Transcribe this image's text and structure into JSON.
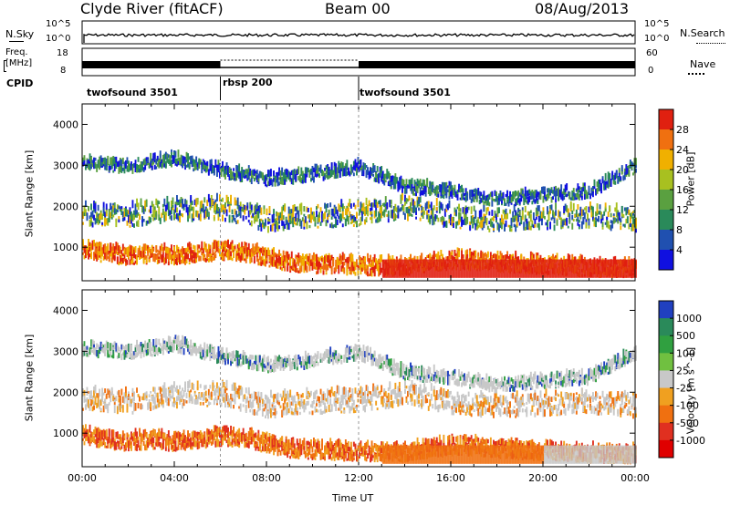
{
  "header": {
    "station": "Clyde River (fitACF)",
    "beam": "Beam 00",
    "date": "08/Aug/2013"
  },
  "status_panels": {
    "nsky_label": "N.Sky",
    "nsearch_label": "N.Search",
    "noise_ticks": [
      "10^5",
      "10^0"
    ],
    "freq_label_1": "Freq.",
    "freq_label_2": "[MHz]",
    "freq_ticks": [
      "18",
      "8"
    ],
    "nave_label": "Nave",
    "nave_ticks": [
      "60",
      "0"
    ],
    "cpid_label": "CPID",
    "cpid_segments": [
      {
        "name": "twofsound 3501",
        "start_h": 0,
        "end_h": 6
      },
      {
        "name": "rbsp 200",
        "start_h": 6,
        "end_h": 12
      },
      {
        "name": "twofsound 3501",
        "start_h": 12,
        "end_h": 24
      }
    ]
  },
  "chart_data": [
    {
      "type": "heatmap",
      "ylabel": "Slant Range [km]",
      "xlabel": "",
      "xlim": [
        0,
        24
      ],
      "ylim": [
        180,
        4500
      ],
      "yticks": [
        1000,
        2000,
        3000,
        4000
      ],
      "colorbar": {
        "label": "Power [dB]",
        "ticks": [
          4,
          8,
          12,
          16,
          20,
          24,
          28
        ],
        "colors": [
          "#1010e0",
          "#2050b0",
          "#2a8a5a",
          "#5aa040",
          "#a8c020",
          "#f0b000",
          "#f07010",
          "#e02010"
        ]
      },
      "bands": [
        {
          "label": "near",
          "t": [
            0,
            1,
            2,
            3,
            4,
            5,
            6,
            7,
            8,
            9,
            10,
            11,
            12,
            13,
            14,
            15,
            16,
            17,
            18,
            19,
            20,
            21,
            22,
            23,
            24
          ],
          "r": [
            900,
            780,
            720,
            760,
            720,
            780,
            850,
            800,
            680,
            560,
            520,
            500,
            480,
            460,
            470,
            560,
            620,
            600,
            560,
            520,
            500,
            480,
            440,
            430,
            420
          ]
        },
        {
          "label": "mid",
          "t": [
            0,
            2,
            4,
            6,
            8,
            10,
            12,
            14,
            16,
            18,
            20,
            22,
            24
          ],
          "r": [
            1750,
            1700,
            1850,
            1900,
            1600,
            1700,
            1750,
            1900,
            1700,
            1600,
            1650,
            1700,
            1600
          ]
        },
        {
          "label": "far",
          "t": [
            0,
            2,
            4,
            6,
            8,
            10,
            12,
            14,
            16,
            18,
            20,
            22,
            24
          ],
          "r": [
            3000,
            2900,
            3100,
            2800,
            2600,
            2700,
            2900,
            2400,
            2300,
            2100,
            2200,
            2300,
            2900
          ]
        }
      ]
    },
    {
      "type": "heatmap",
      "ylabel": "Slant Range [km]",
      "xlabel": "Time UT",
      "xlim": [
        0,
        24
      ],
      "ylim": [
        180,
        4500
      ],
      "xticks": [
        "00:00",
        "04:00",
        "08:00",
        "12:00",
        "16:00",
        "20:00",
        "00:00"
      ],
      "yticks": [
        1000,
        2000,
        3000,
        4000
      ],
      "colorbar": {
        "label": "Velocity [m s^-1]",
        "ticks": [
          1000,
          500,
          100,
          25,
          -25,
          -100,
          -500,
          -1000
        ],
        "colors": [
          "#2040c0",
          "#2a8a5a",
          "#30a040",
          "#70c040",
          "#c8c8c8",
          "#f0a020",
          "#f07010",
          "#e03020",
          "#e00000"
        ]
      }
    }
  ]
}
